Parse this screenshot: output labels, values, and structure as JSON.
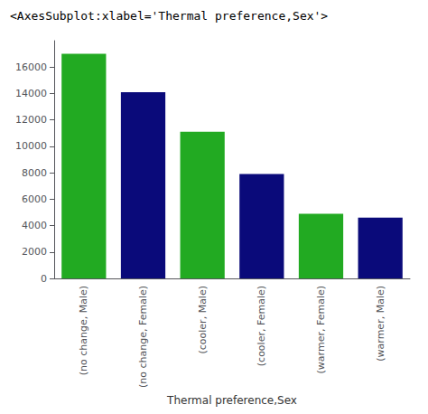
{
  "chart_data": {
    "type": "bar",
    "title": "<AxesSubplot:xlabel='Thermal preference,Sex'>",
    "xlabel": "Thermal preference,Sex",
    "categories": [
      "(no change, Male)",
      "(no change, Female)",
      "(cooler, Male)",
      "(cooler, Female)",
      "(warmer, Female)",
      "(warmer, Male)"
    ],
    "values": [
      17000,
      14100,
      11100,
      7900,
      4900,
      4600
    ],
    "colors": [
      "#22aa22",
      "#0a0a7a",
      "#22aa22",
      "#0a0a7a",
      "#22aa22",
      "#0a0a7a"
    ],
    "ylim": [
      0,
      18000
    ],
    "yticks": [
      0,
      2000,
      4000,
      6000,
      8000,
      10000,
      12000,
      14000,
      16000
    ],
    "grid": false
  }
}
